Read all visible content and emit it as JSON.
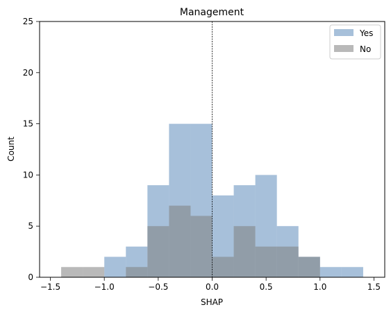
{
  "chart_data": {
    "type": "histogram",
    "title": "Management",
    "xlabel": "SHAP",
    "ylabel": "Count",
    "xlim": [
      -1.6,
      1.6
    ],
    "ylim": [
      0,
      25
    ],
    "xticks": [
      -1.5,
      -1.0,
      -0.5,
      0.0,
      0.5,
      1.0,
      1.5
    ],
    "xtick_labels": [
      "−1.5",
      "−1.0",
      "−0.5",
      "0.0",
      "0.5",
      "1.0",
      "1.5"
    ],
    "yticks": [
      0,
      5,
      10,
      15,
      20,
      25
    ],
    "ytick_labels": [
      "0",
      "5",
      "10",
      "15",
      "20",
      "25"
    ],
    "vline_x": 0,
    "grid": false,
    "legend_position": "top-right",
    "series": [
      {
        "name": "Yes",
        "color": "#4f81b5",
        "opacity": 0.5,
        "bins": [
          {
            "x0": -1.0,
            "x1": -0.8,
            "count": 2
          },
          {
            "x0": -0.8,
            "x1": -0.6,
            "count": 3
          },
          {
            "x0": -0.6,
            "x1": -0.4,
            "count": 9
          },
          {
            "x0": -0.4,
            "x1": -0.2,
            "count": 15
          },
          {
            "x0": -0.2,
            "x1": 0.0,
            "count": 15
          },
          {
            "x0": 0.0,
            "x1": 0.2,
            "count": 8
          },
          {
            "x0": 0.2,
            "x1": 0.4,
            "count": 9
          },
          {
            "x0": 0.4,
            "x1": 0.6,
            "count": 10
          },
          {
            "x0": 0.6,
            "x1": 0.8,
            "count": 5
          },
          {
            "x0": 0.8,
            "x1": 1.0,
            "count": 2
          },
          {
            "x0": 1.0,
            "x1": 1.2,
            "count": 1
          },
          {
            "x0": 1.2,
            "x1": 1.4,
            "count": 1
          }
        ]
      },
      {
        "name": "No",
        "color": "#808080",
        "opacity": 0.55,
        "bins": [
          {
            "x0": -1.4,
            "x1": -1.2,
            "count": 1
          },
          {
            "x0": -1.2,
            "x1": -1.0,
            "count": 1
          },
          {
            "x0": -0.8,
            "x1": -0.6,
            "count": 1
          },
          {
            "x0": -0.6,
            "x1": -0.4,
            "count": 5
          },
          {
            "x0": -0.4,
            "x1": -0.2,
            "count": 7
          },
          {
            "x0": -0.2,
            "x1": 0.0,
            "count": 6
          },
          {
            "x0": 0.0,
            "x1": 0.2,
            "count": 2
          },
          {
            "x0": 0.2,
            "x1": 0.4,
            "count": 5
          },
          {
            "x0": 0.4,
            "x1": 0.6,
            "count": 3
          },
          {
            "x0": 0.6,
            "x1": 0.8,
            "count": 3
          },
          {
            "x0": 0.8,
            "x1": 1.0,
            "count": 2
          }
        ]
      }
    ]
  }
}
